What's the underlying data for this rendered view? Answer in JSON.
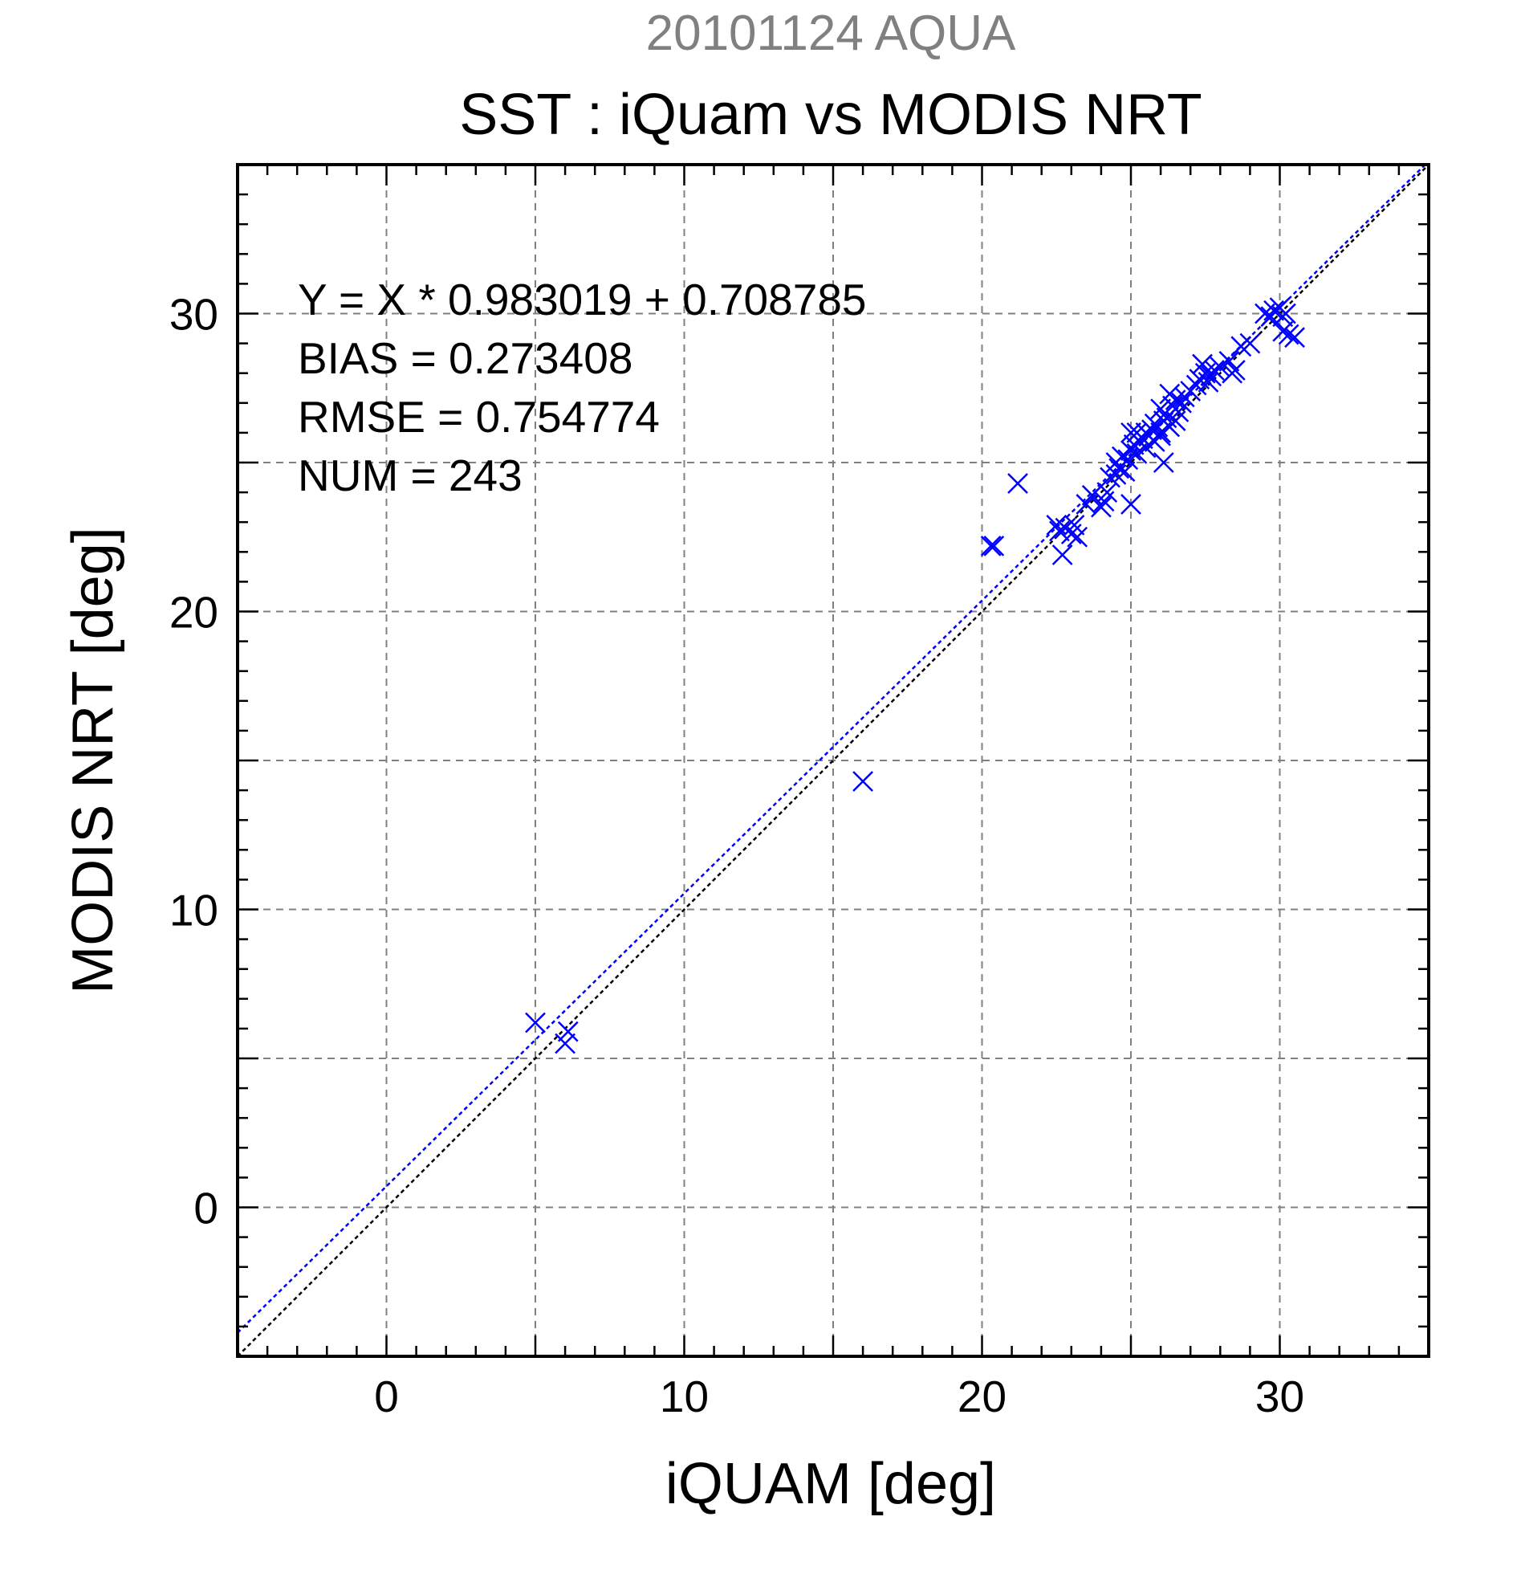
{
  "chart_data": {
    "type": "scatter",
    "supertitle": "20101124 AQUA",
    "title": "SST : iQuam vs MODIS NRT",
    "xlabel": "iQUAM [deg]",
    "ylabel": "MODIS NRT [deg]",
    "xlim": [
      -5,
      35
    ],
    "ylim": [
      -5,
      35
    ],
    "xticks": [
      0,
      10,
      20,
      30
    ],
    "yticks": [
      0,
      10,
      20,
      30
    ],
    "grid": true,
    "minor_ticks": 1,
    "annotations": [
      "Y = X * 0.983019 + 0.708785",
      "BIAS = 0.273408",
      "RMSE = 0.754774",
      "NUM = 243"
    ],
    "regression": {
      "slope": 0.983019,
      "intercept": 0.708785
    },
    "identity_line": true,
    "colors": {
      "points": "#0000ff",
      "fit_line": "#0000ff",
      "identity_line": "#000000",
      "supertitle": "#808080",
      "grid": "#808080"
    },
    "series": [
      {
        "marker": "x",
        "x": [
          5.0,
          6.0,
          6.1,
          16.0,
          20.3,
          20.4,
          21.2,
          22.5,
          22.6,
          22.7,
          23.0,
          23.2,
          23.1,
          22.8,
          23.5,
          23.7,
          24.0,
          24.1,
          24.3,
          24.5,
          24.6,
          24.8,
          24.5,
          24.7,
          24.9,
          25.0,
          25.1,
          25.2,
          25.3,
          25.0,
          25.4,
          25.5,
          25.6,
          25.7,
          25.8,
          25.9,
          26.0,
          26.1,
          26.2,
          26.3,
          25.2,
          25.5,
          25.8,
          26.0,
          26.4,
          26.5,
          26.6,
          26.7,
          26.8,
          26.5,
          26.3,
          25.0,
          26.0,
          27.0,
          27.2,
          27.3,
          27.5,
          27.6,
          27.8,
          28.0,
          27.4,
          27.7,
          28.3,
          28.4,
          28.5,
          28.7,
          29.0,
          29.5,
          29.7,
          29.8,
          30.0,
          30.1,
          30.2,
          30.3,
          30.5,
          30.1,
          26.1,
          24.2
        ],
        "y": [
          6.2,
          5.5,
          5.9,
          14.3,
          22.2,
          22.2,
          24.3,
          22.9,
          22.7,
          21.9,
          22.6,
          22.5,
          22.9,
          22.8,
          23.6,
          23.9,
          23.5,
          23.7,
          24.5,
          24.6,
          24.8,
          24.7,
          25.0,
          25.2,
          25.1,
          25.4,
          25.6,
          25.3,
          25.7,
          23.6,
          25.8,
          26.0,
          25.9,
          26.1,
          26.3,
          26.2,
          26.0,
          26.4,
          26.5,
          26.2,
          26.0,
          25.5,
          25.7,
          26.8,
          26.9,
          27.1,
          26.7,
          27.0,
          27.2,
          26.4,
          27.3,
          26.0,
          25.9,
          27.4,
          27.6,
          27.8,
          28.0,
          27.7,
          28.1,
          28.2,
          28.3,
          27.9,
          28.4,
          28.0,
          28.1,
          28.9,
          29.0,
          30.0,
          29.9,
          30.1,
          30.2,
          29.9,
          30.0,
          29.3,
          29.2,
          29.4,
          25.0,
          24.0
        ]
      }
    ]
  }
}
